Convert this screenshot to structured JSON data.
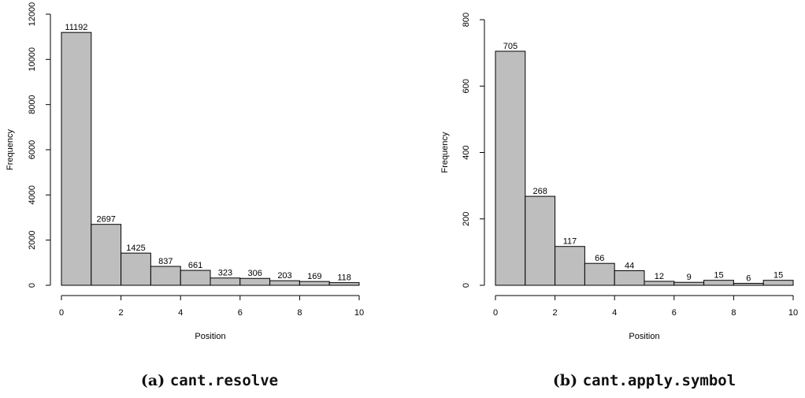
{
  "colors": {
    "bar_fill": "#bebebe",
    "bar_stroke": "#000000"
  },
  "chart_data": [
    {
      "type": "bar",
      "caption_prefix": "(a)",
      "caption_code": "cant.resolve",
      "xlabel": "Position",
      "ylabel": "Frequency",
      "bin_edges": [
        0,
        1,
        2,
        3,
        4,
        5,
        6,
        7,
        8,
        9,
        10
      ],
      "values": [
        11192,
        2697,
        1425,
        837,
        661,
        323,
        306,
        203,
        169,
        118
      ],
      "xlim": [
        0,
        10
      ],
      "xticks": [
        0,
        2,
        4,
        6,
        8,
        10
      ],
      "ylim": [
        0,
        12000
      ],
      "yticks": [
        0,
        2000,
        4000,
        6000,
        8000,
        10000,
        12000
      ],
      "grid": false
    },
    {
      "type": "bar",
      "caption_prefix": "(b)",
      "caption_code": "cant.apply.symbol",
      "xlabel": "Position",
      "ylabel": "Frequency",
      "bin_edges": [
        0,
        1,
        2,
        3,
        4,
        5,
        6,
        7,
        8,
        9,
        10
      ],
      "values": [
        705,
        268,
        117,
        66,
        44,
        12,
        9,
        15,
        6,
        15
      ],
      "xlim": [
        0,
        10
      ],
      "xticks": [
        0,
        2,
        4,
        6,
        8,
        10
      ],
      "ylim": [
        0,
        800
      ],
      "yticks": [
        0,
        200,
        400,
        600,
        800
      ],
      "grid": false
    }
  ]
}
